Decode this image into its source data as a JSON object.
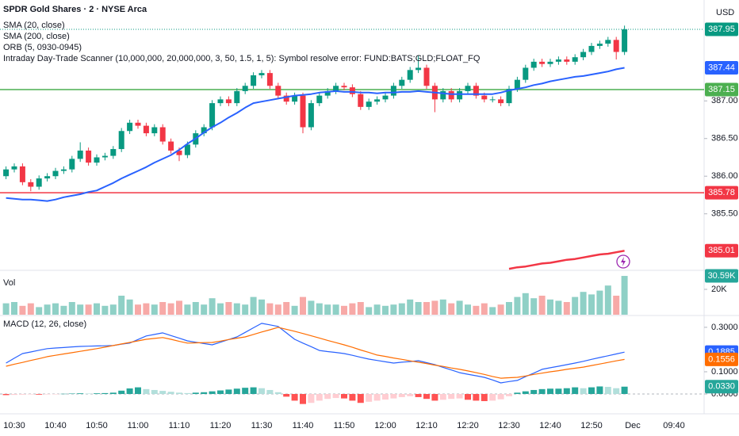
{
  "chart_data": {
    "type": "candlestick",
    "title": "SPDR Gold Shares · 2 · NYSE Arca",
    "currency": "USD",
    "categories": [
      null,
      "10:30",
      null,
      null,
      null,
      null,
      "10:40",
      null,
      null,
      null,
      null,
      "10:50",
      null,
      null,
      null,
      null,
      "11:00",
      null,
      null,
      null,
      null,
      "11:10",
      null,
      null,
      null,
      null,
      "11:20",
      null,
      null,
      null,
      null,
      "11:30",
      null,
      null,
      null,
      null,
      "11:40",
      null,
      null,
      null,
      null,
      "11:50",
      null,
      null,
      null,
      null,
      "12:00",
      null,
      null,
      null,
      null,
      "12:10",
      null,
      null,
      null,
      null,
      "12:20",
      null,
      null,
      null,
      null,
      "12:30",
      null,
      null,
      null,
      null,
      "12:40",
      null,
      null,
      null,
      null,
      "12:50",
      null,
      null,
      null,
      null,
      "Dec",
      null,
      null,
      null,
      null,
      "09:40"
    ],
    "open": [
      386.0,
      386.09,
      386.13,
      385.92,
      385.86,
      385.97,
      386.0,
      386.07,
      386.09,
      386.23,
      386.34,
      386.18,
      386.25,
      386.27,
      386.36,
      386.6,
      386.71,
      386.67,
      386.57,
      386.65,
      386.46,
      386.34,
      386.28,
      386.42,
      386.57,
      386.65,
      386.97,
      387.02,
      386.97,
      387.13,
      387.2,
      387.34,
      387.37,
      387.2,
      387.07,
      386.99,
      387.07,
      386.65,
      386.97,
      387.07,
      387.13,
      387.2,
      387.18,
      387.09,
      386.92,
      386.99,
      387.02,
      387.07,
      387.2,
      387.28,
      387.41,
      387.44,
      387.2,
      387.02,
      387.13,
      387.02,
      387.13,
      387.2,
      387.07,
      387.02,
      387.02,
      386.97,
      387.16,
      387.28,
      387.44,
      387.52,
      387.49,
      387.52,
      387.55,
      387.52,
      387.58,
      387.65,
      387.73,
      387.76,
      387.81,
      387.65,
      null,
      null,
      null,
      null,
      null,
      null
    ],
    "high": [
      386.13,
      386.17,
      386.17,
      385.96,
      386.01,
      386.04,
      386.11,
      386.13,
      386.27,
      386.45,
      386.38,
      386.29,
      386.31,
      386.4,
      386.64,
      386.75,
      386.75,
      386.71,
      386.69,
      386.69,
      386.5,
      386.38,
      386.46,
      386.61,
      386.69,
      387.01,
      387.06,
      387.06,
      387.17,
      387.24,
      387.38,
      387.41,
      387.41,
      387.24,
      387.11,
      387.11,
      387.11,
      387.01,
      387.11,
      387.17,
      387.24,
      387.24,
      387.22,
      387.13,
      387.03,
      387.06,
      387.11,
      387.24,
      387.32,
      387.45,
      387.6,
      387.48,
      387.24,
      387.17,
      387.17,
      387.17,
      387.24,
      387.24,
      387.11,
      387.06,
      387.06,
      387.2,
      387.32,
      387.48,
      387.56,
      387.56,
      387.56,
      387.59,
      387.59,
      387.62,
      387.69,
      387.77,
      387.8,
      387.85,
      387.85,
      388.0,
      null,
      null,
      null,
      null,
      null,
      null
    ],
    "low": [
      385.96,
      386.05,
      385.88,
      385.8,
      385.82,
      385.93,
      385.96,
      386.03,
      386.05,
      386.19,
      386.14,
      386.14,
      386.21,
      386.23,
      386.32,
      386.56,
      386.63,
      386.53,
      386.53,
      386.42,
      386.3,
      386.2,
      386.24,
      386.38,
      386.53,
      386.61,
      386.93,
      386.93,
      386.93,
      387.09,
      387.16,
      387.3,
      387.16,
      387.03,
      386.95,
      386.95,
      386.57,
      386.61,
      386.93,
      387.03,
      387.09,
      387.14,
      387.05,
      386.88,
      386.88,
      386.95,
      386.98,
      387.03,
      387.16,
      387.24,
      387.37,
      387.16,
      386.85,
      386.98,
      386.98,
      386.98,
      387.09,
      387.03,
      386.98,
      386.98,
      386.93,
      386.93,
      387.12,
      387.24,
      387.4,
      387.45,
      387.45,
      387.48,
      387.48,
      387.48,
      387.54,
      387.61,
      387.69,
      387.72,
      387.55,
      387.61,
      null,
      null,
      null,
      null,
      null,
      null
    ],
    "close": [
      386.09,
      386.13,
      385.92,
      385.86,
      385.97,
      386.0,
      386.07,
      386.09,
      386.23,
      386.34,
      386.18,
      386.25,
      386.27,
      386.36,
      386.6,
      386.71,
      386.67,
      386.57,
      386.65,
      386.46,
      386.34,
      386.28,
      386.42,
      386.57,
      386.65,
      386.97,
      387.02,
      386.97,
      387.13,
      387.2,
      387.34,
      387.37,
      387.2,
      387.07,
      386.99,
      387.07,
      386.65,
      386.97,
      387.07,
      387.13,
      387.2,
      387.18,
      387.09,
      386.92,
      386.99,
      387.02,
      387.07,
      387.2,
      387.28,
      387.41,
      387.44,
      387.2,
      387.02,
      387.13,
      387.02,
      387.13,
      387.2,
      387.07,
      387.02,
      387.02,
      386.97,
      387.16,
      387.28,
      387.44,
      387.52,
      387.49,
      387.52,
      387.55,
      387.52,
      387.58,
      387.65,
      387.73,
      387.76,
      387.81,
      387.65,
      387.95,
      null,
      null,
      null,
      null,
      null,
      null
    ],
    "up_color": "#089981",
    "down_color": "#f23645",
    "ylim": [
      384.76,
      388.34
    ],
    "yticks": [
      {
        "value": 385.5,
        "label": "385.50"
      },
      {
        "value": 386,
        "label": "386.00"
      },
      {
        "value": 386.5,
        "label": "386.50"
      },
      {
        "value": 387,
        "label": "387.00"
      }
    ],
    "grid": false,
    "series": [
      {
        "name": "SMA (20, close)",
        "color": "#2962ff",
        "values": [
          385.71,
          385.7,
          385.69,
          385.69,
          385.68,
          385.67,
          385.69,
          385.72,
          385.74,
          385.76,
          385.79,
          385.81,
          385.86,
          385.91,
          385.97,
          386.02,
          386.07,
          386.12,
          386.18,
          386.23,
          386.28,
          386.35,
          386.43,
          386.5,
          386.58,
          386.65,
          386.71,
          386.78,
          386.84,
          386.91,
          386.97,
          386.99,
          387.01,
          387.03,
          387.05,
          387.07,
          387.08,
          387.09,
          387.11,
          387.12,
          387.13,
          387.12,
          387.12,
          387.11,
          387.11,
          387.1,
          387.11,
          387.11,
          387.12,
          387.12,
          387.13,
          387.12,
          387.11,
          387.1,
          387.09,
          387.09,
          387.09,
          387.09,
          387.09,
          387.09,
          387.11,
          387.14,
          387.16,
          387.18,
          387.21,
          387.23,
          387.26,
          387.28,
          387.3,
          387.32,
          387.33,
          387.35,
          387.37,
          387.39,
          387.42,
          387.44,
          null,
          null,
          null,
          null,
          null,
          null
        ]
      },
      {
        "name": "SMA (200, close)",
        "color": "#f23645",
        "values": [
          null,
          null,
          null,
          null,
          null,
          null,
          null,
          null,
          null,
          null,
          null,
          null,
          null,
          null,
          null,
          null,
          null,
          null,
          null,
          null,
          null,
          null,
          null,
          null,
          null,
          null,
          null,
          null,
          null,
          null,
          null,
          null,
          null,
          null,
          null,
          null,
          null,
          null,
          null,
          null,
          null,
          null,
          null,
          null,
          null,
          null,
          null,
          null,
          null,
          null,
          null,
          null,
          null,
          null,
          null,
          null,
          null,
          null,
          null,
          null,
          null,
          384.77,
          384.79,
          384.8,
          384.82,
          384.84,
          384.85,
          384.87,
          384.89,
          384.9,
          384.92,
          384.94,
          384.96,
          384.97,
          384.99,
          385.01,
          null,
          null,
          null,
          null,
          null,
          null
        ]
      }
    ],
    "orb": {
      "name": "ORB (5, 0930-0945)",
      "high": 387.15,
      "low": 385.78,
      "high_color": "#4caf50",
      "low_color": "#f23645"
    },
    "notes": [
      "Intraday Day-Trade Scanner (10,000,000, 20,000,000, 3, 50, 1.5, 1, 5): Symbol resolve error: FUND:BATS;GLD;FLOAT_FQ"
    ],
    "volume": {
      "type": "bar",
      "title": "Vol",
      "values": [
        9000,
        10000,
        7000,
        9000,
        6000,
        8000,
        9000,
        7000,
        10000,
        8000,
        8000,
        9000,
        7000,
        8000,
        15000,
        12000,
        8000,
        9000,
        8000,
        10000,
        9000,
        11000,
        8000,
        10000,
        8000,
        13000,
        9000,
        10000,
        9000,
        8000,
        14000,
        12000,
        9000,
        8000,
        10000,
        7000,
        14000,
        11000,
        9000,
        8000,
        8000,
        7000,
        9000,
        10000,
        6000,
        8000,
        7000,
        8000,
        9000,
        12000,
        10000,
        10000,
        11000,
        12000,
        9000,
        11000,
        8000,
        7000,
        9000,
        6000,
        8000,
        10000,
        14000,
        17000,
        13000,
        15000,
        12000,
        11000,
        10000,
        14000,
        18000,
        16000,
        19000,
        23000,
        15000,
        30590,
        null,
        null,
        null,
        null,
        null,
        null
      ],
      "last_value_label": "30.59K",
      "up_color": "#8fd0c6",
      "down_color": "#f7a9a7",
      "label_color": "#26a69a",
      "ylim": [
        0,
        33750
      ],
      "yticks": [
        {
          "value": 20000,
          "label": "20K"
        }
      ]
    },
    "macd": {
      "type": "line",
      "title": "MACD (12, 26, close)",
      "ylim": [
        -0.082,
        0.346
      ],
      "yticks": [
        {
          "value": 0.3,
          "label": "0.3000"
        },
        {
          "value": 0.1,
          "label": "0.1000"
        },
        {
          "value": 0,
          "label": "0.0000"
        }
      ],
      "series": [
        {
          "color": "#2962ff",
          "values": [
            0.139,
            0.161,
            0.182,
            0.189,
            0.197,
            0.204,
            0.207,
            0.209,
            0.212,
            0.214,
            0.215,
            0.216,
            0.217,
            0.218,
            0.224,
            0.229,
            0.245,
            0.261,
            0.268,
            0.275,
            0.263,
            0.251,
            0.239,
            0.233,
            0.227,
            0.221,
            0.233,
            0.245,
            0.257,
            0.277,
            0.298,
            0.318,
            0.311,
            0.304,
            0.275,
            0.246,
            0.229,
            0.213,
            0.196,
            0.191,
            0.187,
            0.182,
            0.174,
            0.165,
            0.157,
            0.151,
            0.145,
            0.139,
            0.143,
            0.146,
            0.15,
            0.141,
            0.132,
            0.12,
            0.108,
            0.096,
            0.089,
            0.082,
            0.075,
            0.063,
            0.05,
            0.056,
            0.061,
            0.078,
            0.094,
            0.111,
            0.118,
            0.125,
            0.132,
            0.139,
            0.147,
            0.156,
            0.164,
            0.172,
            0.18,
            0.1885,
            null,
            null,
            null,
            null,
            null,
            null
          ]
        },
        {
          "color": "#ff6d00",
          "values": [
            0.125,
            0.134,
            0.142,
            0.151,
            0.159,
            0.168,
            0.174,
            0.18,
            0.186,
            0.192,
            0.198,
            0.204,
            0.211,
            0.218,
            0.225,
            0.232,
            0.239,
            0.246,
            0.25,
            0.254,
            0.246,
            0.237,
            0.229,
            0.23,
            0.231,
            0.232,
            0.238,
            0.245,
            0.251,
            0.257,
            0.268,
            0.279,
            0.289,
            0.3,
            0.291,
            0.282,
            0.272,
            0.262,
            0.252,
            0.241,
            0.231,
            0.221,
            0.21,
            0.198,
            0.187,
            0.175,
            0.169,
            0.162,
            0.156,
            0.149,
            0.143,
            0.137,
            0.13,
            0.124,
            0.117,
            0.111,
            0.104,
            0.096,
            0.088,
            0.079,
            0.071,
            0.073,
            0.075,
            0.081,
            0.088,
            0.094,
            0.1,
            0.105,
            0.111,
            0.116,
            0.121,
            0.128,
            0.135,
            0.142,
            0.149,
            0.1556,
            null,
            null,
            null,
            null,
            null,
            null
          ]
        }
      ],
      "histogram": {
        "values": [
          -0.005,
          -0.004,
          -0.003,
          -0.002,
          -0.003,
          -0.002,
          -0.001,
          0.001,
          0.002,
          0.003,
          0.002,
          0.003,
          0.004,
          0.006,
          0.015,
          0.025,
          0.03,
          0.022,
          0.018,
          0.014,
          0.01,
          0.006,
          0.004,
          0.006,
          0.008,
          0.012,
          0.016,
          0.02,
          0.024,
          0.028,
          0.03,
          0.026,
          0.018,
          0.008,
          -0.012,
          -0.03,
          -0.045,
          -0.04,
          -0.03,
          -0.022,
          -0.018,
          -0.02,
          -0.03,
          -0.04,
          -0.035,
          -0.03,
          -0.025,
          -0.02,
          -0.014,
          -0.01,
          -0.014,
          -0.022,
          -0.03,
          -0.026,
          -0.022,
          -0.02,
          -0.026,
          -0.03,
          -0.032,
          -0.03,
          -0.024,
          -0.01,
          0.006,
          0.012,
          0.018,
          0.022,
          0.024,
          0.024,
          0.026,
          0.03,
          0.026,
          0.03,
          0.034,
          0.032,
          0.026,
          0.033,
          null,
          null,
          null,
          null,
          null,
          null
        ],
        "last_value_label": "0.0330",
        "colors": [
          "#26a69a",
          "#b2dfdb",
          "#ff5252",
          "#ffcdd2"
        ]
      }
    }
  }
}
